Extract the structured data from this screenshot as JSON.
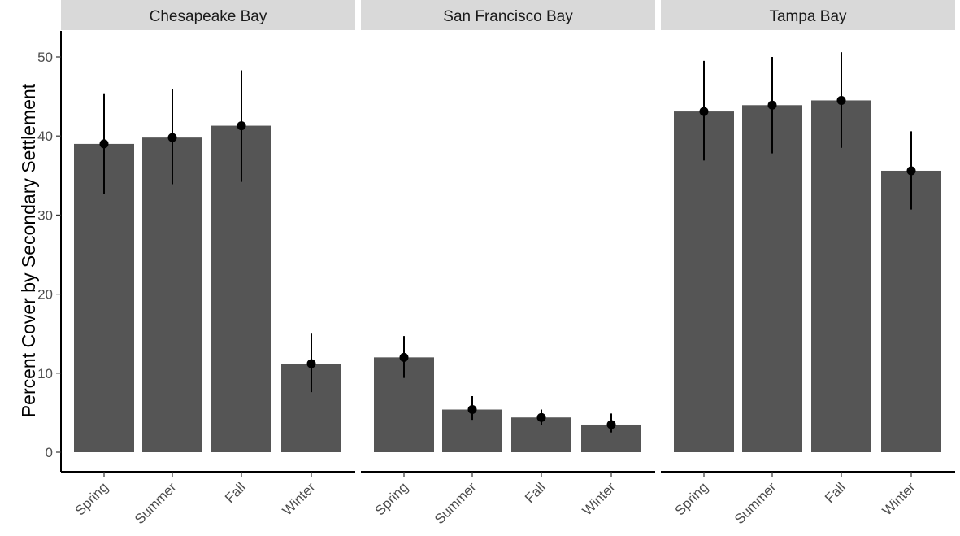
{
  "chart_data": {
    "type": "bar",
    "ylabel": "Percent Cover by Secondary Settlement",
    "xlabel": "",
    "ylim": [
      0,
      52
    ],
    "yticks": [
      0,
      10,
      20,
      30,
      40,
      50
    ],
    "categories": [
      "Spring",
      "Summer",
      "Fall",
      "Winter"
    ],
    "bar_color": "#555555",
    "strip_color": "#d9d9d9",
    "grid": false,
    "error_bars": true,
    "panels": [
      {
        "name": "Chesapeake Bay",
        "values": [
          39.0,
          39.8,
          41.3,
          11.2
        ],
        "err_low": [
          32.7,
          33.9,
          34.2,
          7.6
        ],
        "err_high": [
          45.4,
          45.9,
          48.3,
          15.0
        ]
      },
      {
        "name": "San Francisco Bay",
        "values": [
          12.0,
          5.4,
          4.4,
          3.5
        ],
        "err_low": [
          9.4,
          4.1,
          3.4,
          2.5
        ],
        "err_high": [
          14.7,
          7.1,
          5.4,
          4.9
        ]
      },
      {
        "name": "Tampa Bay",
        "values": [
          43.1,
          43.9,
          44.5,
          35.6
        ],
        "err_low": [
          36.9,
          37.8,
          38.5,
          30.7
        ],
        "err_high": [
          49.5,
          50.0,
          50.6,
          40.6
        ]
      }
    ]
  }
}
